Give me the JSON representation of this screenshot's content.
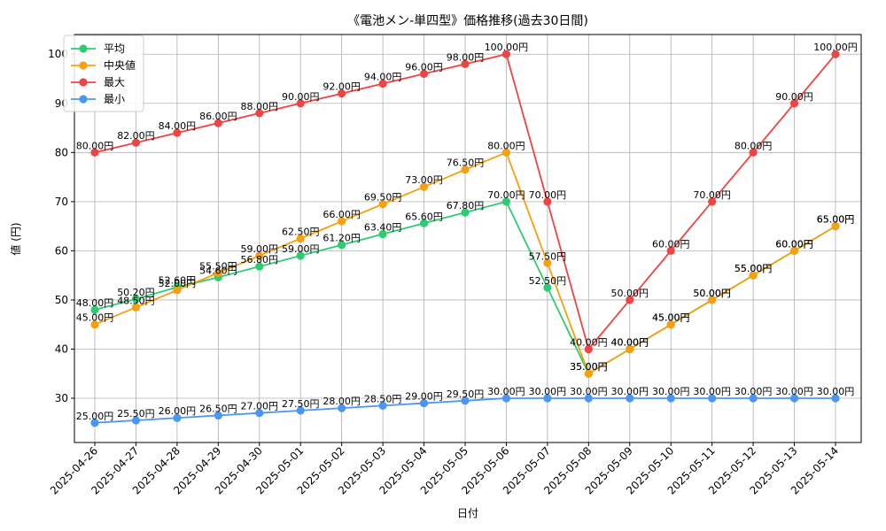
{
  "chart_data": {
    "type": "line",
    "title": "《電池メン-単四型》価格推移(過去30日間)",
    "xlabel": "日付",
    "ylabel": "値 (円)",
    "ylim": [
      21,
      104
    ],
    "yticks": [
      30,
      40,
      50,
      60,
      70,
      80,
      90,
      100
    ],
    "grid": true,
    "legend_position": "top-left",
    "categories": [
      "2025-04-26",
      "2025-04-27",
      "2025-04-28",
      "2025-04-29",
      "2025-04-30",
      "2025-05-01",
      "2025-05-02",
      "2025-05-03",
      "2025-05-04",
      "2025-05-05",
      "2025-05-06",
      "2025-05-07",
      "2025-05-08",
      "2025-05-09",
      "2025-05-10",
      "2025-05-11",
      "2025-05-12",
      "2025-05-13",
      "2025-05-14"
    ],
    "label_suffix": "円",
    "series": [
      {
        "name": "平均",
        "color": "#2ecc71",
        "values": [
          48.0,
          50.2,
          52.6,
          54.6,
          56.8,
          59.0,
          61.2,
          63.4,
          65.6,
          67.8,
          70.0,
          52.5,
          35.0,
          40.0,
          45.0,
          50.0,
          55.0,
          60.0,
          65.0
        ]
      },
      {
        "name": "中央値",
        "color": "#f5a00f",
        "values": [
          45.0,
          48.5,
          52.0,
          55.5,
          59.0,
          62.5,
          66.0,
          69.5,
          73.0,
          76.5,
          80.0,
          57.5,
          35.0,
          40.0,
          45.0,
          50.0,
          55.0,
          60.0,
          65.0
        ]
      },
      {
        "name": "最大",
        "color": "#ef4444",
        "values": [
          80.0,
          82.0,
          84.0,
          86.0,
          88.0,
          90.0,
          92.0,
          94.0,
          96.0,
          98.0,
          100.0,
          70.0,
          40.0,
          50.0,
          60.0,
          70.0,
          80.0,
          90.0,
          100.0
        ]
      },
      {
        "name": "最小",
        "color": "#4b96f3",
        "values": [
          25.0,
          25.5,
          26.0,
          26.5,
          27.0,
          27.5,
          28.0,
          28.5,
          29.0,
          29.5,
          30.0,
          30.0,
          30.0,
          30.0,
          30.0,
          30.0,
          30.0,
          30.0,
          30.0
        ]
      }
    ]
  }
}
